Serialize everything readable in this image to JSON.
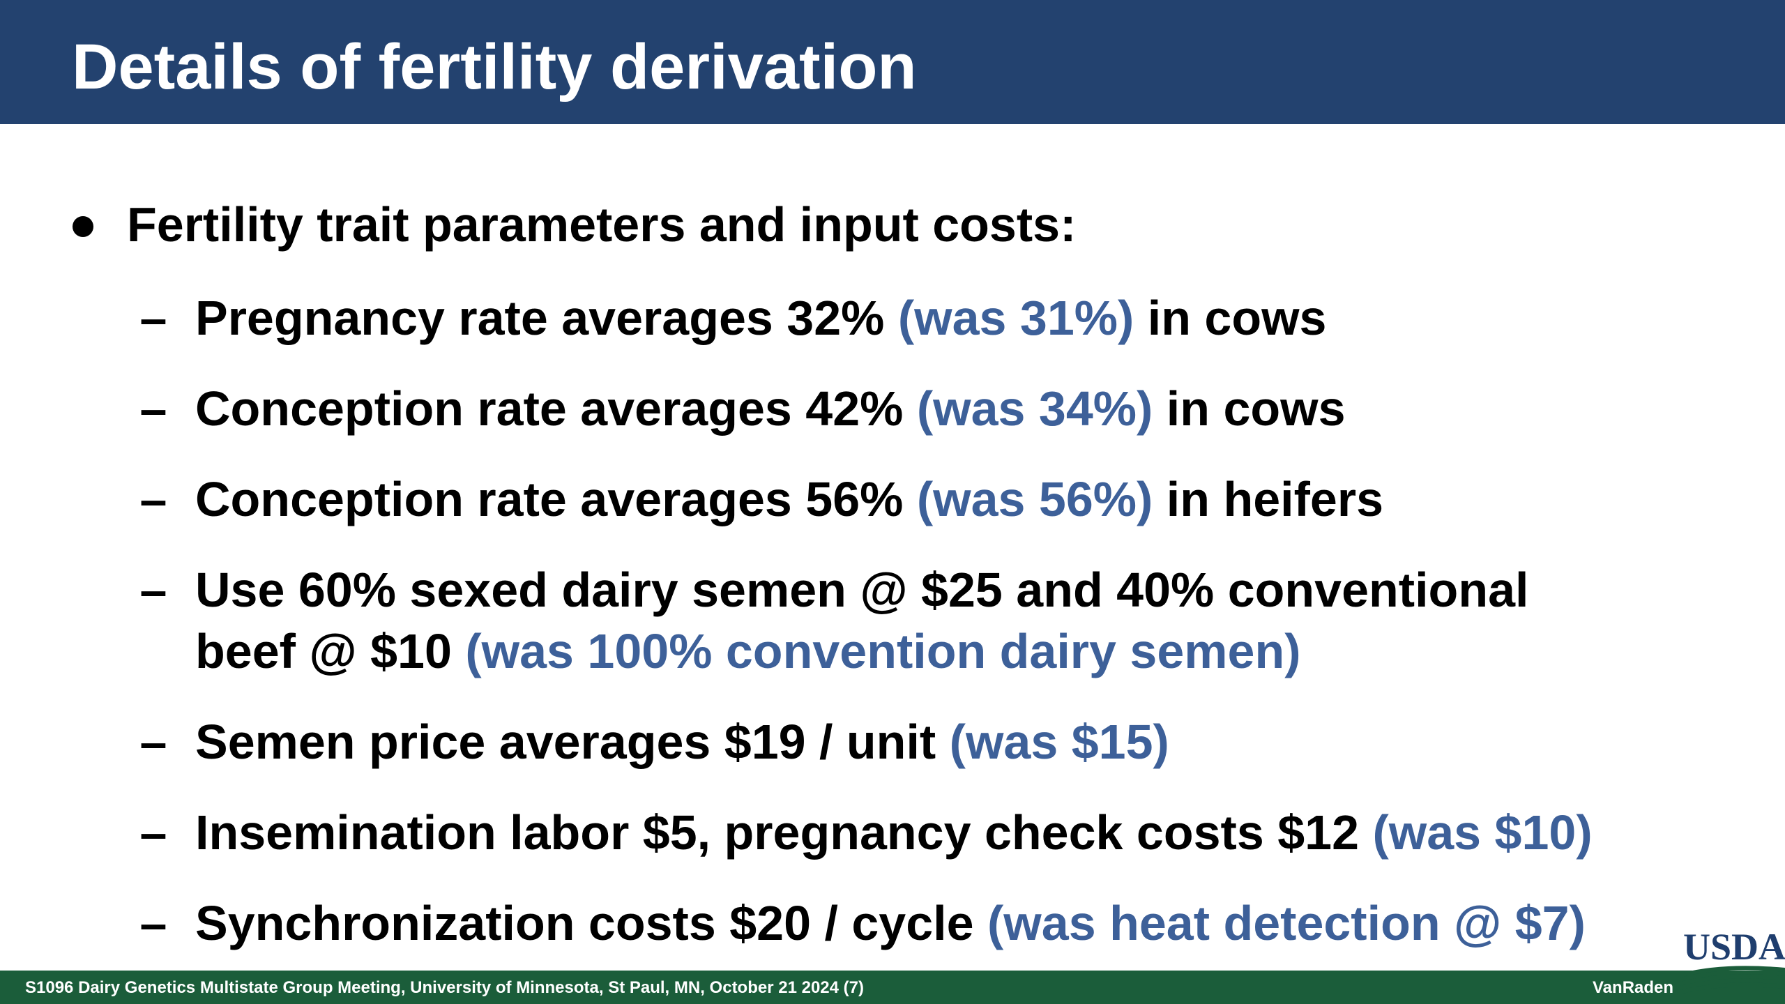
{
  "slide": {
    "title": "Details of fertility derivation",
    "main_bullet": "Fertility trait parameters and input costs:",
    "dash": "–",
    "items": [
      {
        "text": "Pregnancy rate averages 32% ",
        "was": "(was 31%)",
        "suffix": " in cows"
      },
      {
        "text": "Conception rate averages 42% ",
        "was": "(was 34%)",
        "suffix": " in cows"
      },
      {
        "text": "Conception rate averages 56% ",
        "was": "(was 56%)",
        "suffix": " in heifers"
      },
      {
        "line1": "Use 60% sexed dairy semen @ $25 and 40% conventional",
        "line2": "beef @ $10 ",
        "was": "(was 100% convention dairy semen)"
      },
      {
        "text": "Semen price averages $19 / unit ",
        "was": "(was $15)"
      },
      {
        "text": "Insemination labor $5, pregnancy check costs $12 ",
        "was": "(was $10)"
      },
      {
        "text": "Synchronization costs $20 / cycle ",
        "was": "(was heat detection @ $7)"
      }
    ]
  },
  "footer": {
    "text": "S1096 Dairy Genetics Multistate Group Meeting, University of Minnesota, St Paul, MN, October 21 2024 (7)",
    "author": "VanRaden"
  },
  "logo": {
    "text": "USDA"
  },
  "colors": {
    "title_bar": "#23426f",
    "was_text": "#3d6099",
    "footer_bar": "#1b5d3a"
  }
}
